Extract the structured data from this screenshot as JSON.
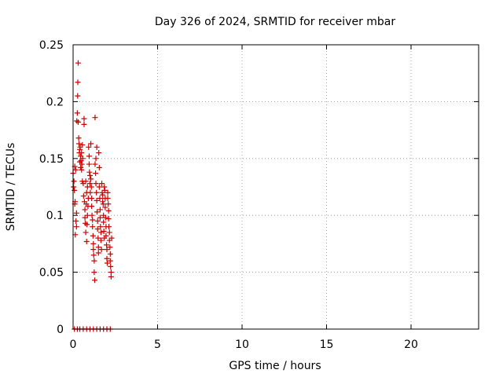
{
  "chart_data": {
    "type": "scatter",
    "title": "Day 326 of 2024, SRMTID for receiver mbar",
    "xlabel": "GPS time / hours",
    "ylabel": "SRMTID / TECUs",
    "xlim": [
      0,
      24
    ],
    "ylim": [
      0,
      0.25
    ],
    "x_ticks": [
      0,
      5,
      10,
      15,
      20
    ],
    "x_tick_labels": [
      "0",
      "5",
      "10",
      "15",
      "20"
    ],
    "y_ticks": [
      0,
      0.05,
      0.1,
      0.15,
      0.2,
      0.25
    ],
    "y_tick_labels": [
      "0",
      "0.05",
      "0.1",
      "0.15",
      "0.2",
      "0.25"
    ],
    "grid": true,
    "marker": "+",
    "color": "#cc0000",
    "series": [
      {
        "points": [
          [
            0.0,
            0.137
          ],
          [
            0.03,
            0.125
          ],
          [
            0.05,
            0.13
          ],
          [
            0.08,
            0.122
          ],
          [
            0.1,
            0.143
          ],
          [
            0.1,
            0.11
          ],
          [
            0.12,
            0.112
          ],
          [
            0.13,
            0.083
          ],
          [
            0.15,
            0.14
          ],
          [
            0.17,
            0.095
          ],
          [
            0.2,
            0.102
          ],
          [
            0.2,
            0.09
          ],
          [
            0.22,
            0.183
          ],
          [
            0.25,
            0.19
          ],
          [
            0.27,
            0.205
          ],
          [
            0.28,
            0.217
          ],
          [
            0.3,
            0.234
          ],
          [
            0.3,
            0.182
          ],
          [
            0.33,
            0.168
          ],
          [
            0.35,
            0.163
          ],
          [
            0.37,
            0.155
          ],
          [
            0.4,
            0.158
          ],
          [
            0.4,
            0.147
          ],
          [
            0.42,
            0.16
          ],
          [
            0.45,
            0.152
          ],
          [
            0.45,
            0.142
          ],
          [
            0.47,
            0.148
          ],
          [
            0.5,
            0.14
          ],
          [
            0.5,
            0.155
          ],
          [
            0.52,
            0.145
          ],
          [
            0.55,
            0.13
          ],
          [
            0.55,
            0.162
          ],
          [
            0.57,
            0.15
          ],
          [
            0.6,
            0.128
          ],
          [
            0.62,
            0.117
          ],
          [
            0.65,
            0.185
          ],
          [
            0.65,
            0.18
          ],
          [
            0.67,
            0.112
          ],
          [
            0.7,
            0.105
          ],
          [
            0.7,
            0.098
          ],
          [
            0.72,
            0.093
          ],
          [
            0.75,
            0.085
          ],
          [
            0.75,
            0.13
          ],
          [
            0.78,
            0.11
          ],
          [
            0.8,
            0.12
          ],
          [
            0.8,
            0.077
          ],
          [
            0.82,
            0.092
          ],
          [
            0.85,
            0.125
          ],
          [
            0.85,
            0.1
          ],
          [
            0.88,
            0.108
          ],
          [
            0.9,
            0.115
          ],
          [
            0.92,
            0.16
          ],
          [
            0.95,
            0.152
          ],
          [
            0.95,
            0.145
          ],
          [
            0.97,
            0.138
          ],
          [
            1.0,
            0.135
          ],
          [
            1.0,
            0.128
          ],
          [
            1.02,
            0.12
          ],
          [
            1.05,
            0.163
          ],
          [
            1.05,
            0.132
          ],
          [
            1.08,
            0.125
          ],
          [
            1.1,
            0.115
          ],
          [
            1.1,
            0.108
          ],
          [
            1.12,
            0.1
          ],
          [
            1.15,
            0.096
          ],
          [
            1.15,
            0.09
          ],
          [
            1.18,
            0.082
          ],
          [
            1.2,
            0.075
          ],
          [
            1.2,
            0.07
          ],
          [
            1.22,
            0.065
          ],
          [
            1.25,
            0.06
          ],
          [
            1.25,
            0.05
          ],
          [
            1.28,
            0.043
          ],
          [
            1.3,
            0.186
          ],
          [
            1.3,
            0.145
          ],
          [
            1.33,
            0.137
          ],
          [
            1.35,
            0.15
          ],
          [
            1.35,
            0.128
          ],
          [
            1.38,
            0.12
          ],
          [
            1.4,
            0.16
          ],
          [
            1.4,
            0.113
          ],
          [
            1.42,
            0.103
          ],
          [
            1.45,
            0.095
          ],
          [
            1.45,
            0.088
          ],
          [
            1.48,
            0.08
          ],
          [
            1.5,
            0.072
          ],
          [
            1.5,
            0.067
          ],
          [
            1.52,
            0.155
          ],
          [
            1.55,
            0.142
          ],
          [
            1.55,
            0.125
          ],
          [
            1.58,
            0.115
          ],
          [
            1.6,
            0.105
          ],
          [
            1.6,
            0.098
          ],
          [
            1.62,
            0.09
          ],
          [
            1.65,
            0.085
          ],
          [
            1.65,
            0.078
          ],
          [
            1.68,
            0.07
          ],
          [
            1.7,
            0.128
          ],
          [
            1.72,
            0.12
          ],
          [
            1.75,
            0.118
          ],
          [
            1.75,
            0.112
          ],
          [
            1.78,
            0.11
          ],
          [
            1.8,
            0.1
          ],
          [
            1.8,
            0.094
          ],
          [
            1.82,
            0.086
          ],
          [
            1.85,
            0.08
          ],
          [
            1.85,
            0.125
          ],
          [
            1.88,
            0.122
          ],
          [
            1.9,
            0.115
          ],
          [
            1.9,
            0.107
          ],
          [
            1.92,
            0.098
          ],
          [
            1.95,
            0.09
          ],
          [
            1.95,
            0.082
          ],
          [
            1.98,
            0.074
          ],
          [
            2.0,
            0.07
          ],
          [
            2.0,
            0.062
          ],
          [
            2.02,
            0.058
          ],
          [
            2.05,
            0.12
          ],
          [
            2.05,
            0.115
          ],
          [
            2.08,
            0.11
          ],
          [
            2.1,
            0.104
          ],
          [
            2.1,
            0.097
          ],
          [
            2.12,
            0.09
          ],
          [
            2.15,
            0.085
          ],
          [
            2.15,
            0.078
          ],
          [
            2.18,
            0.072
          ],
          [
            2.2,
            0.066
          ],
          [
            2.2,
            0.06
          ],
          [
            2.22,
            0.055
          ],
          [
            2.25,
            0.05
          ],
          [
            2.25,
            0.046
          ],
          [
            2.28,
            0.08
          ],
          [
            0.08,
            0.0
          ],
          [
            0.25,
            0.0
          ],
          [
            0.4,
            0.0
          ],
          [
            0.6,
            0.0
          ],
          [
            0.8,
            0.0
          ],
          [
            1.0,
            0.0
          ],
          [
            1.2,
            0.0
          ],
          [
            1.4,
            0.0
          ],
          [
            1.6,
            0.0
          ],
          [
            1.8,
            0.0
          ],
          [
            2.0,
            0.0
          ],
          [
            2.2,
            0.0
          ]
        ]
      }
    ]
  }
}
